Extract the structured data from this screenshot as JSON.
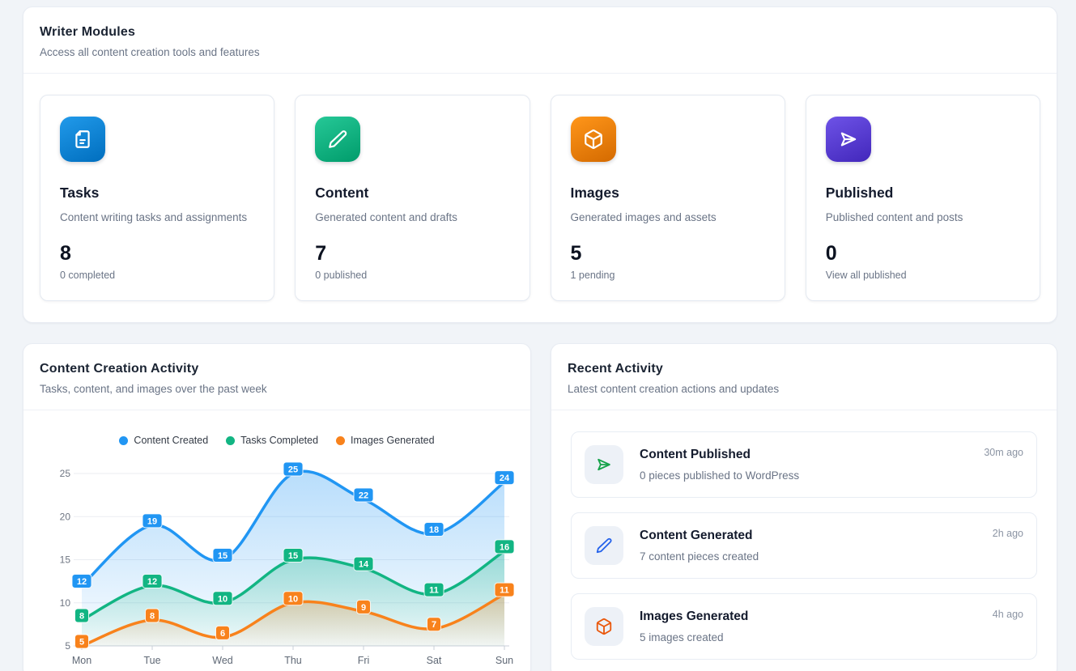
{
  "writer_modules": {
    "title": "Writer Modules",
    "subtitle": "Access all content creation tools and features",
    "cards": [
      {
        "title": "Tasks",
        "description": "Content writing tasks and assignments",
        "count": "8",
        "sub": "0 completed",
        "color": "#0d86d6",
        "icon": "file-icon"
      },
      {
        "title": "Content",
        "description": "Generated content and drafts",
        "count": "7",
        "sub": "0 published",
        "color": "#12b483",
        "icon": "pencil-icon"
      },
      {
        "title": "Images",
        "description": "Generated images and assets",
        "count": "5",
        "sub": "1 pending",
        "color": "#ec8206",
        "icon": "cube-icon"
      },
      {
        "title": "Published",
        "description": "Published content and posts",
        "count": "0",
        "sub": "View all published",
        "color": "#5a3fd3",
        "icon": "send-icon"
      }
    ]
  },
  "activity_chart": {
    "title": "Content Creation Activity",
    "subtitle": "Tasks, content, and images over the past week"
  },
  "chart_data": {
    "type": "line",
    "x": [
      "Mon",
      "Tue",
      "Wed",
      "Thu",
      "Fri",
      "Sat",
      "Sun"
    ],
    "series": [
      {
        "name": "Content Created",
        "color": "#2196f3",
        "values": [
          12,
          19,
          15,
          25,
          22,
          18,
          24
        ]
      },
      {
        "name": "Tasks Completed",
        "color": "#12b583",
        "values": [
          8,
          12,
          10,
          15,
          14,
          11,
          16
        ]
      },
      {
        "name": "Images Generated",
        "color": "#f8821c",
        "values": [
          5,
          8,
          6,
          10,
          9,
          7,
          11
        ]
      }
    ],
    "ylim": [
      5,
      25
    ],
    "yticks": [
      5,
      10,
      15,
      20,
      25
    ],
    "smooth": true,
    "area": true,
    "grid": true,
    "point_labels": true,
    "legend_position": "top"
  },
  "recent_activity": {
    "title": "Recent Activity",
    "subtitle": "Latest content creation actions and updates",
    "items": [
      {
        "title": "Content Published",
        "description": "0 pieces published to WordPress",
        "time": "30m ago",
        "icon": "send-icon",
        "icon_color": "#16a34a"
      },
      {
        "title": "Content Generated",
        "description": "7 content pieces created",
        "time": "2h ago",
        "icon": "pencil-icon",
        "icon_color": "#2563eb"
      },
      {
        "title": "Images Generated",
        "description": "5 images created",
        "time": "4h ago",
        "icon": "cube-icon",
        "icon_color": "#ea580c"
      }
    ]
  }
}
